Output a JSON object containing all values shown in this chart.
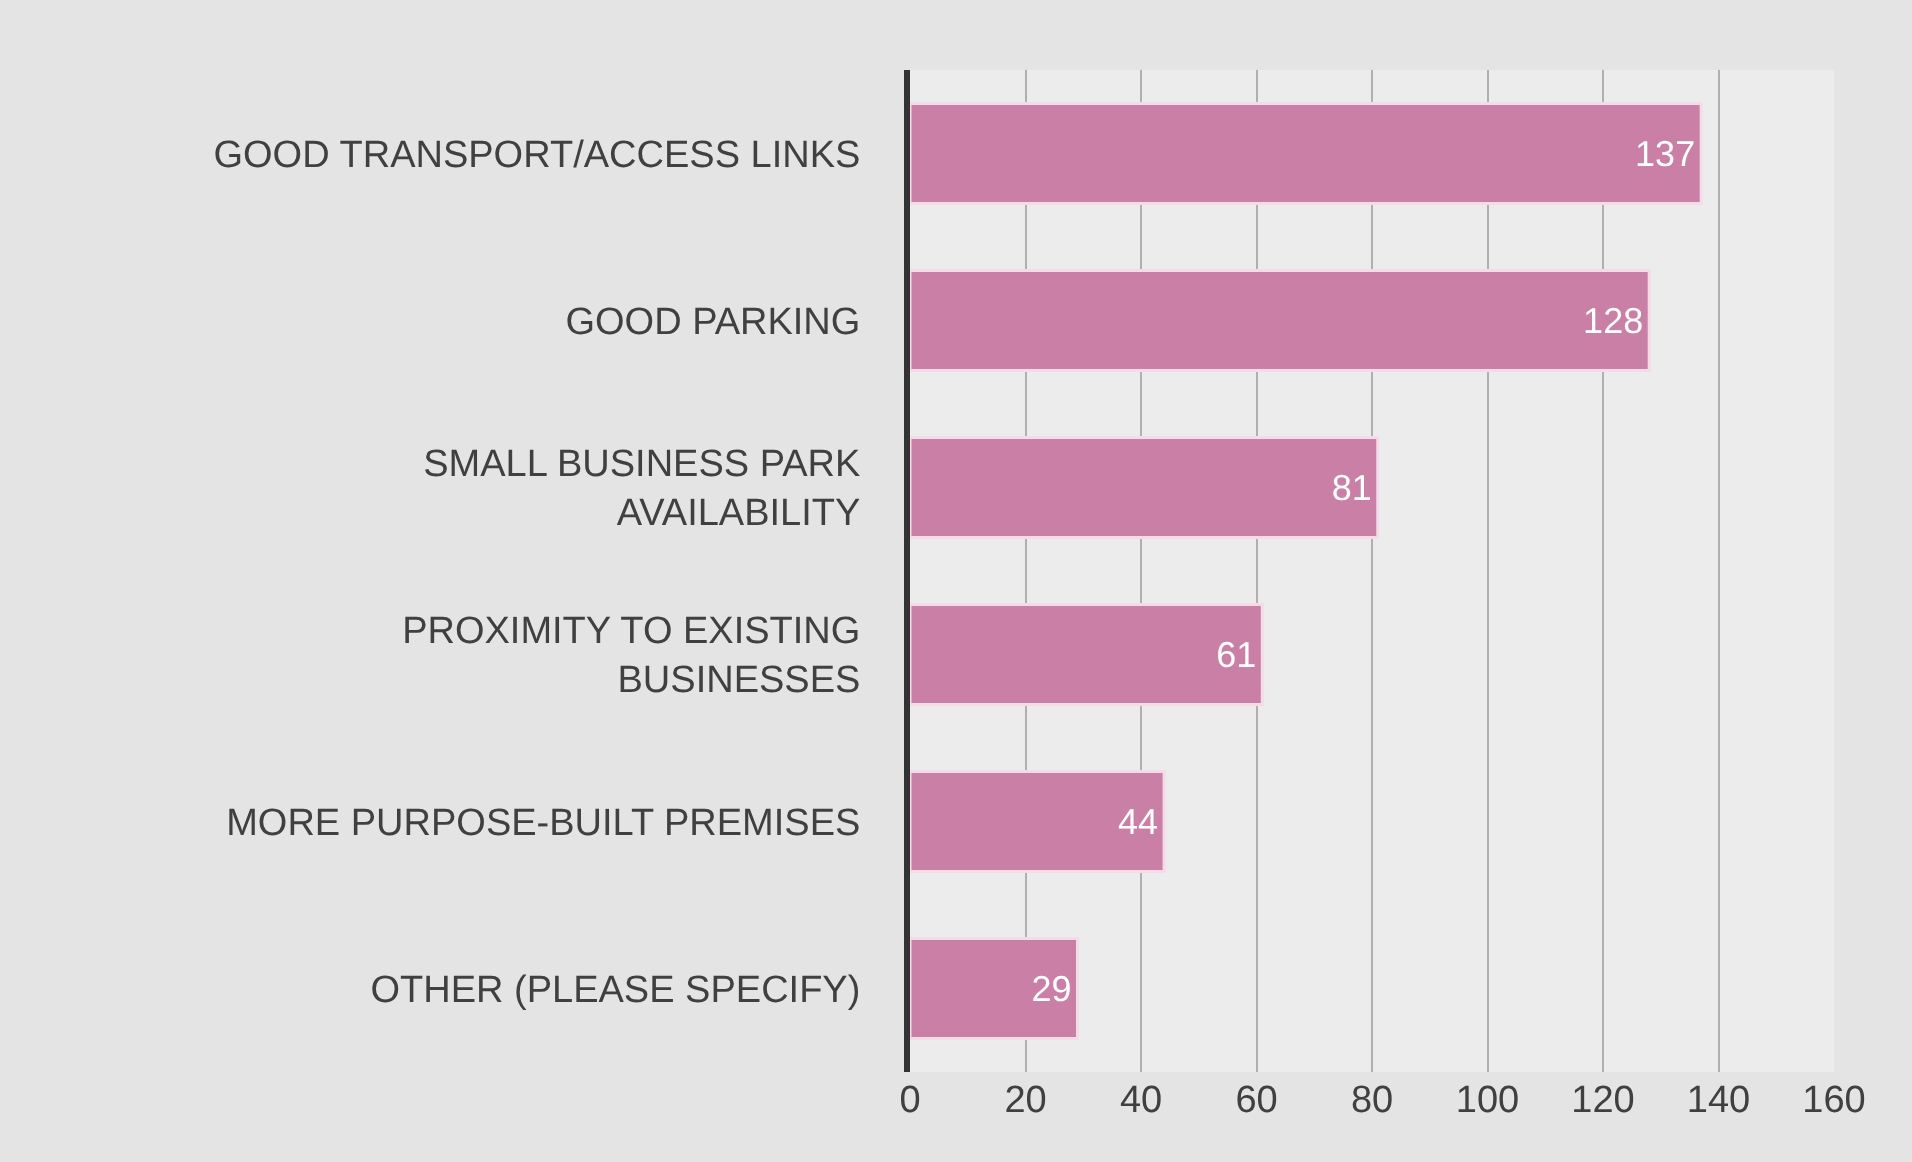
{
  "chart_data": {
    "type": "bar",
    "orientation": "horizontal",
    "categories": [
      "GOOD TRANSPORT/ACCESS LINKS",
      "GOOD PARKING",
      "SMALL BUSINESS PARK\nAVAILABILITY",
      "PROXIMITY TO EXISTING\nBUSINESSES",
      "MORE PURPOSE-BUILT PREMISES",
      "OTHER (PLEASE SPECIFY)"
    ],
    "values": [
      137,
      128,
      81,
      61,
      44,
      29
    ],
    "color": "#c97fa6",
    "xlim": [
      0,
      160
    ],
    "xticks": [
      0,
      20,
      40,
      60,
      80,
      100,
      120,
      140,
      160
    ],
    "grid": "x",
    "data_labels": true,
    "legend": false
  }
}
